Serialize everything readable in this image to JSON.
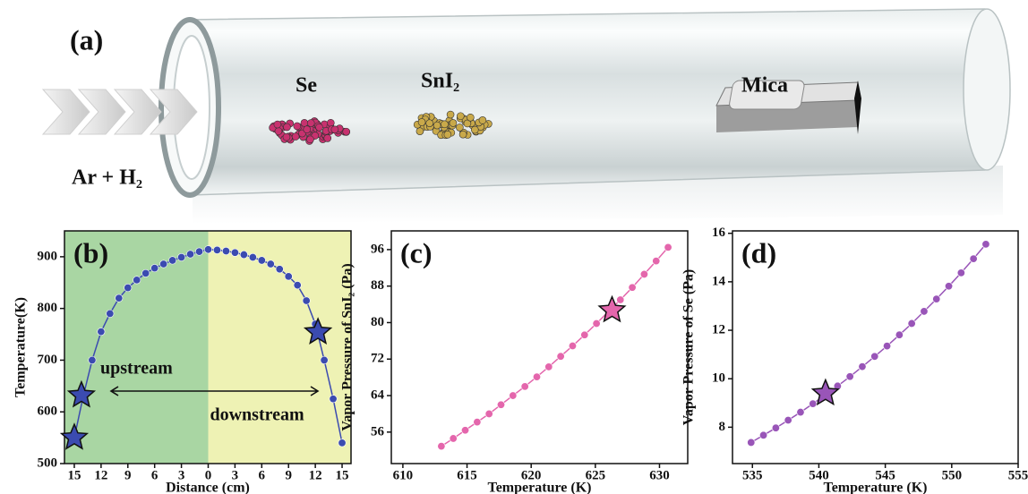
{
  "schematic": {
    "panel": "(a)",
    "se": "Se",
    "sni2": "SnI₂",
    "mica": "Mica",
    "gas": "Ar + H₂"
  },
  "chart_data": [
    {
      "type": "line",
      "title": "(b)",
      "x_label": "Distance (cm)",
      "y_label": "Temperature(K)",
      "x": [
        -15,
        -14,
        -13,
        -12,
        -11,
        -10,
        -9,
        -8,
        -7,
        -6,
        -5,
        -4,
        -3,
        -2,
        -1,
        0,
        1,
        2,
        3,
        4,
        5,
        6,
        7,
        8,
        9,
        10,
        11,
        12,
        13,
        14,
        15
      ],
      "values": [
        550,
        630,
        700,
        755,
        790,
        820,
        840,
        855,
        868,
        878,
        886,
        893,
        899,
        905,
        910,
        914,
        913,
        911,
        908,
        904,
        899,
        893,
        886,
        876,
        862,
        845,
        815,
        770,
        700,
        625,
        540
      ],
      "color": "#3b4bb0",
      "markers": [
        {
          "x": -15,
          "y": 550
        },
        {
          "x": -14.2,
          "y": 632
        },
        {
          "x": 12.3,
          "y": 754
        }
      ],
      "marker_color": "#3b4bb0",
      "annotations": [
        "upstream",
        "downstream"
      ],
      "background_split": 0,
      "background_colors": [
        "#a9d6a3",
        "#eef2b4"
      ],
      "xlim": [
        -16.1,
        16
      ],
      "ylim": [
        500,
        950
      ],
      "xticks": [
        {
          "value": -15,
          "label": "15"
        },
        {
          "value": -12,
          "label": "12"
        },
        {
          "value": -9,
          "label": "9"
        },
        {
          "value": -6,
          "label": "6"
        },
        {
          "value": -3,
          "label": "3"
        },
        0,
        3,
        6,
        9,
        12,
        15
      ],
      "yticks": [
        500,
        600,
        700,
        800,
        900
      ]
    },
    {
      "type": "line",
      "title": "(c)",
      "x_label": "Temperature (K)",
      "y_label": "Vapor Pressure of SnI₂ (Pa)",
      "x": [
        613,
        613.93,
        614.86,
        615.79,
        616.72,
        617.65,
        618.58,
        619.51,
        620.44,
        621.37,
        622.3,
        623.23,
        624.16,
        625.09,
        626.02,
        626.95,
        627.88,
        628.81,
        629.74,
        630.67
      ],
      "values": [
        52.9,
        54.6,
        56.4,
        58.2,
        60.0,
        62.0,
        64.0,
        66.0,
        68.1,
        70.3,
        72.6,
        74.9,
        77.3,
        79.8,
        82.4,
        85.0,
        87.7,
        90.6,
        93.5,
        96.5
      ],
      "color": "#e466ac",
      "markers": [
        {
          "x": 626.3,
          "y": 82.7
        }
      ],
      "marker_color": "#e466ac",
      "xlim": [
        609.1,
        632.2
      ],
      "ylim": [
        49.1,
        100.1
      ],
      "xticks": [
        610,
        615,
        620,
        625,
        630
      ],
      "yticks": [
        56,
        64,
        72,
        80,
        88,
        96
      ]
    },
    {
      "type": "line",
      "title": "(d)",
      "x_label": "Temperature (K)",
      "y_label": "Vapor Pressure of Se (Pa)",
      "x": [
        534.9,
        535.83,
        536.76,
        537.69,
        538.62,
        539.55,
        540.48,
        541.41,
        542.34,
        543.27,
        544.2,
        545.13,
        546.06,
        546.99,
        547.92,
        548.85,
        549.78,
        550.71,
        551.64,
        552.57
      ],
      "values": [
        7.37,
        7.67,
        7.97,
        8.29,
        8.62,
        8.97,
        9.33,
        9.7,
        10.09,
        10.5,
        10.92,
        11.35,
        11.81,
        12.28,
        12.78,
        13.29,
        13.82,
        14.37,
        14.95,
        15.55
      ],
      "color": "#9955b8",
      "markers": [
        {
          "x": 540.5,
          "y": 9.4
        }
      ],
      "marker_color": "#9955b8",
      "xlim": [
        533.5,
        555
      ],
      "ylim": [
        6.5,
        16.1
      ],
      "xticks": [
        535,
        540,
        545,
        550,
        555
      ],
      "yticks": [
        8,
        10,
        12,
        14,
        16
      ]
    }
  ]
}
